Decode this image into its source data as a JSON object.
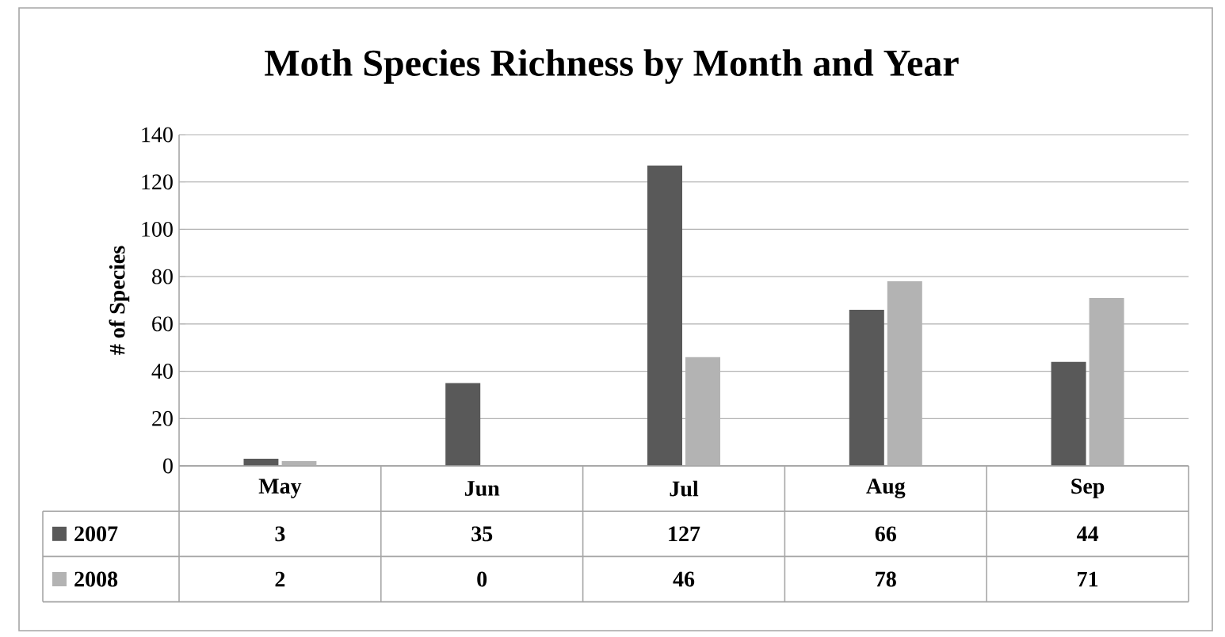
{
  "chart_data": {
    "type": "bar",
    "title": "Moth Species Richness by Month and Year",
    "ylabel": "# of Species",
    "categories": [
      "May",
      "Jun",
      "Jul",
      "Aug",
      "Sep"
    ],
    "series": [
      {
        "name": "2007",
        "color": "#595959",
        "values": [
          3,
          35,
          127,
          66,
          44
        ]
      },
      {
        "name": "2008",
        "color": "#b3b3b3",
        "values": [
          2,
          0,
          46,
          78,
          71
        ]
      }
    ],
    "ylim": [
      0,
      140
    ],
    "yticks": [
      0,
      20,
      40,
      60,
      80,
      100,
      120,
      140
    ],
    "grid": "y",
    "legend": "bottom",
    "data_labels": true
  }
}
